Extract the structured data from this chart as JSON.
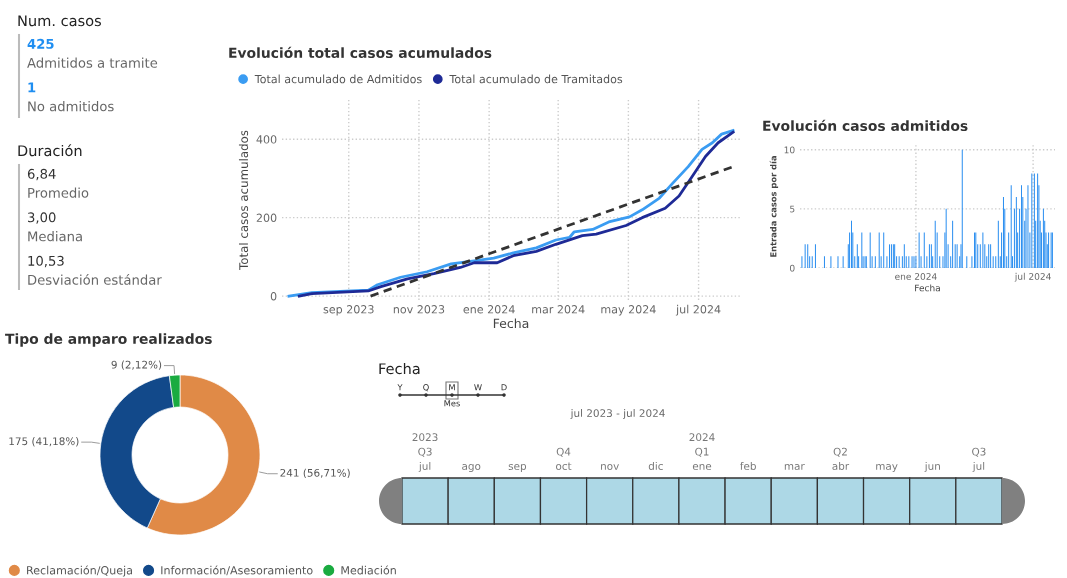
{
  "chart_data": [
    {
      "type": "other",
      "title": "Num. casos",
      "color": "#1f8ef1",
      "annotations": [
        "425",
        "Admitidos a tramite",
        "1",
        "No admitidos"
      ]
    },
    {
      "type": "other",
      "title": "Duración",
      "color": "#333333",
      "annotations": [
        "6,84",
        "Promedio",
        "3,00",
        "Mediana",
        "10,53",
        "Desviación estándar"
      ]
    },
    {
      "type": "line",
      "title": "Evolución total casos acumulados",
      "xlabel": "Fecha",
      "ylabel": "Total casos acumulados",
      "legend": "top left",
      "grid": true,
      "xlim": [
        "2023-07-05",
        "2024-08-06"
      ],
      "ylim": [
        -10,
        500
      ],
      "yticks": [
        0,
        200,
        400
      ],
      "xticks": [
        {
          "value": "2023-09-01",
          "label": "sep 2023"
        },
        {
          "value": "2023-11-01",
          "label": "nov 2023"
        },
        {
          "value": "2024-01-01",
          "label": "ene 2024"
        },
        {
          "value": "2024-03-01",
          "label": "mar 2024"
        },
        {
          "value": "2024-05-01",
          "label": "may 2024"
        },
        {
          "value": "2024-07-01",
          "label": "jul 2024"
        }
      ],
      "series": [
        {
          "name": "Total acumulado de Admitidos",
          "color": "#3a9cf2",
          "x": [
            "2023-07-11",
            "2023-07-31",
            "2023-09-18",
            "2023-09-26",
            "2023-10-16",
            "2023-11-08",
            "2023-11-29",
            "2023-12-19",
            "2024-01-05",
            "2024-01-22",
            "2024-02-11",
            "2024-02-28",
            "2024-03-11",
            "2024-03-15",
            "2024-03-31",
            "2024-04-14",
            "2024-05-02",
            "2024-05-13",
            "2024-05-28",
            "2024-06-08",
            "2024-06-22",
            "2024-07-04",
            "2024-07-13",
            "2024-07-21",
            "2024-07-31"
          ],
          "values": [
            0,
            9,
            15,
            29,
            48,
            62,
            82,
            90,
            97,
            110,
            123,
            143,
            150,
            164,
            170,
            189,
            202,
            220,
            250,
            286,
            330,
            374,
            391,
            413,
            422
          ]
        },
        {
          "name": "Total acumulado de Tramitados",
          "color": "#1e2a96",
          "x": [
            "2023-07-20",
            "2023-07-31",
            "2023-09-18",
            "2023-09-29",
            "2023-10-22",
            "2023-11-14",
            "2023-12-07",
            "2023-12-19",
            "2024-01-08",
            "2024-01-22",
            "2024-02-11",
            "2024-02-28",
            "2024-03-22",
            "2024-04-03",
            "2024-04-29",
            "2024-05-13",
            "2024-06-02",
            "2024-06-14",
            "2024-06-25",
            "2024-07-07",
            "2024-07-18",
            "2024-07-31"
          ],
          "values": [
            0,
            6,
            13,
            24,
            44,
            57,
            73,
            85,
            85,
            103,
            114,
            132,
            154,
            158,
            180,
            200,
            224,
            255,
            303,
            356,
            391,
            418
          ]
        },
        {
          "type": "line",
          "line_style": "dashed",
          "color": "#333333",
          "x": [
            "2023-09-20",
            "2024-07-31"
          ],
          "values": [
            0,
            330
          ]
        }
      ]
    },
    {
      "type": "bar",
      "title": "Evolución casos admitidos",
      "xlabel": "Fecha",
      "ylabel": "Entrada casos por día",
      "grid": true,
      "color": "#2e90f0",
      "xlim": [
        "2023-07-05",
        "2024-08-04"
      ],
      "ylim": [
        0,
        10.4
      ],
      "yticks": [
        0,
        5,
        10
      ],
      "xticks": [
        {
          "value": "2024-01-01",
          "label": "ene 2024"
        },
        {
          "value": "2024-07-01",
          "label": "jul 2024"
        }
      ],
      "x": [
        "2023-07-08",
        "2023-07-13",
        "2023-07-17",
        "2023-07-20",
        "2023-07-24",
        "2023-07-29",
        "2023-08-12",
        "2023-08-22",
        "2023-09-02",
        "2023-09-10",
        "2023-09-18",
        "2023-09-20",
        "2023-09-23",
        "2023-09-25",
        "2023-09-28",
        "2023-10-02",
        "2023-10-04",
        "2023-10-09",
        "2023-10-11",
        "2023-10-14",
        "2023-10-16",
        "2023-10-22",
        "2023-10-25",
        "2023-10-30",
        "2023-11-05",
        "2023-11-08",
        "2023-11-12",
        "2023-11-17",
        "2023-11-21",
        "2023-11-24",
        "2023-11-27",
        "2023-11-29",
        "2023-12-02",
        "2023-12-06",
        "2023-12-11",
        "2023-12-14",
        "2023-12-17",
        "2023-12-21",
        "2023-12-26",
        "2023-12-29",
        "2024-01-01",
        "2024-01-06",
        "2024-01-09",
        "2024-01-14",
        "2024-01-18",
        "2024-01-22",
        "2024-01-25",
        "2024-01-27",
        "2024-01-31",
        "2024-02-03",
        "2024-02-07",
        "2024-02-12",
        "2024-02-15",
        "2024-02-17",
        "2024-02-20",
        "2024-02-24",
        "2024-02-27",
        "2024-03-02",
        "2024-03-05",
        "2024-03-09",
        "2024-03-11",
        "2024-03-13",
        "2024-03-20",
        "2024-03-28",
        "2024-04-01",
        "2024-04-03",
        "2024-04-06",
        "2024-04-10",
        "2024-04-14",
        "2024-04-17",
        "2024-04-20",
        "2024-04-23",
        "2024-04-26",
        "2024-04-30",
        "2024-05-04",
        "2024-05-08",
        "2024-05-11",
        "2024-05-13",
        "2024-05-16",
        "2024-05-18",
        "2024-05-21",
        "2024-05-24",
        "2024-05-28",
        "2024-05-30",
        "2024-06-02",
        "2024-06-05",
        "2024-06-07",
        "2024-06-10",
        "2024-06-13",
        "2024-06-15",
        "2024-06-18",
        "2024-06-20",
        "2024-06-23",
        "2024-06-26",
        "2024-06-29",
        "2024-07-03",
        "2024-07-05",
        "2024-07-08",
        "2024-07-10",
        "2024-07-12",
        "2024-07-14",
        "2024-07-17",
        "2024-07-19",
        "2024-07-21",
        "2024-07-23",
        "2024-07-25",
        "2024-07-29",
        "2024-07-31"
      ],
      "values": [
        1,
        2,
        2,
        1,
        1,
        2,
        1,
        1,
        1,
        1,
        2,
        3,
        4,
        3,
        1,
        2,
        1,
        3,
        1,
        1,
        1,
        3,
        1,
        1,
        3,
        1,
        3,
        1,
        2,
        2,
        2,
        2,
        1,
        1,
        1,
        2,
        1,
        1,
        1,
        1,
        1,
        3,
        1,
        3,
        1,
        2,
        2,
        1,
        4,
        3,
        1,
        1,
        3,
        5,
        2,
        1,
        4,
        2,
        2,
        1,
        2,
        10,
        1,
        1,
        3,
        3,
        2,
        2,
        3,
        2,
        1,
        2,
        2,
        1,
        1,
        4,
        1,
        3,
        6,
        5,
        1,
        3,
        7,
        1,
        5,
        6,
        3,
        5,
        7,
        6,
        4,
        5,
        7,
        3,
        8,
        8,
        4,
        8,
        7,
        4,
        3,
        5,
        4,
        3,
        2,
        3,
        3,
        3
      ]
    },
    {
      "type": "donut",
      "title": "Tipo de amparo realizados",
      "legend": "bottom",
      "categories": [
        "Reclamación/Queja",
        "Información/Asesoramiento",
        "Mediación"
      ],
      "values": [
        241,
        175,
        9
      ],
      "colors": [
        "#e08a47",
        "#12498a",
        "#1aab40"
      ],
      "value_labels": [
        "241 (56,71%)",
        "175 (41,18%)",
        "9 (2,12%)"
      ]
    },
    {
      "type": "other",
      "title": "Fecha",
      "annotations": [
        "Y",
        "Q",
        "M",
        "W",
        "D",
        "Mes",
        "jul 2023 - jul 2024"
      ],
      "categories": [
        "2023\nQ3\njul",
        "ago",
        "sep",
        "Q4\noct",
        "nov",
        "dic",
        "2024\nQ1\nene",
        "feb",
        "mar",
        "Q2\nabr",
        "may",
        "jun",
        "Q3\njul"
      ],
      "color": "#add8e6"
    }
  ]
}
